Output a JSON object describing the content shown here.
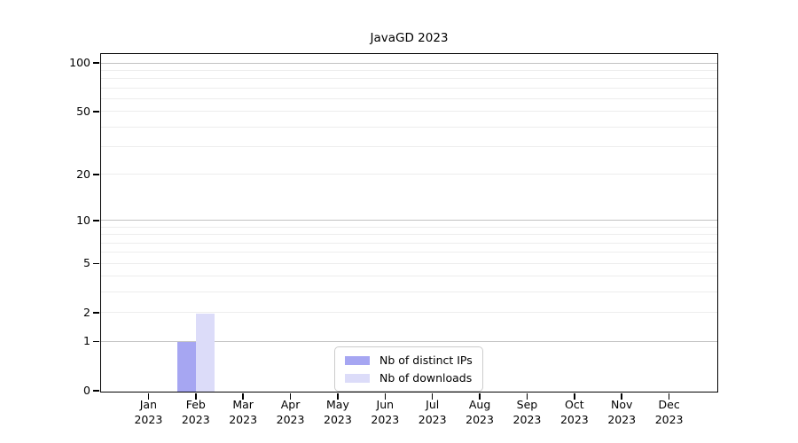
{
  "chart_data": {
    "type": "bar",
    "title": "JavaGD 2023",
    "categories": [
      "Jan 2023",
      "Feb 2023",
      "Mar 2023",
      "Apr 2023",
      "May 2023",
      "Jun 2023",
      "Jul 2023",
      "Aug 2023",
      "Sep 2023",
      "Oct 2023",
      "Nov 2023",
      "Dec 2023"
    ],
    "series": [
      {
        "name": "Nb of distinct IPs",
        "color": "#a6a6f2",
        "values": [
          0,
          1,
          0,
          0,
          0,
          0,
          0,
          0,
          0,
          0,
          0,
          0
        ]
      },
      {
        "name": "Nb of downloads",
        "color": "#dcdcf9",
        "values": [
          0,
          2,
          0,
          0,
          0,
          0,
          0,
          0,
          0,
          0,
          0,
          0
        ]
      }
    ],
    "xlabel": "",
    "ylabel": "",
    "y_scale": "log1p",
    "y_ticks": [
      0,
      1,
      2,
      5,
      10,
      20,
      50,
      100
    ],
    "y_major_gridlines": [
      1,
      10,
      100
    ],
    "y_minor_gridlines": [
      2,
      3,
      4,
      6,
      7,
      8,
      9,
      5,
      20,
      30,
      40,
      50,
      60,
      70,
      80,
      90
    ],
    "grid": "horizontal",
    "legend_position": "bottom-center-inside",
    "colors": {
      "axis": "#000000",
      "major_grid": "#c3c3c3",
      "minor_grid": "#ededed",
      "background": "#ffffff",
      "legend_border": "#cccccc"
    }
  }
}
